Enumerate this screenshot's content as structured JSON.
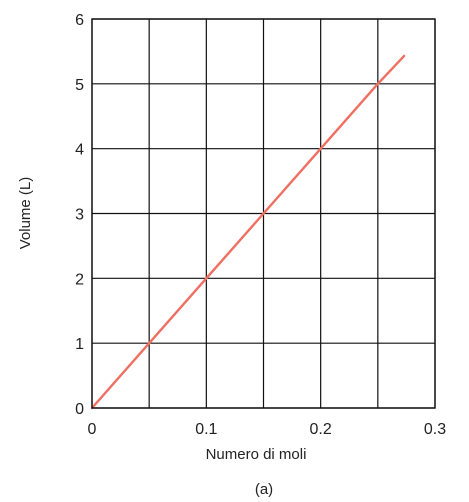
{
  "chart_data": {
    "type": "line",
    "xlabel": "Numero di moli",
    "ylabel": "Volume (L)",
    "panel_label": "(a)",
    "xlim": [
      0,
      0.3
    ],
    "ylim": [
      0,
      6
    ],
    "x_ticks": [
      "0",
      "0.1",
      "0.2",
      "0.3"
    ],
    "y_ticks": [
      "0",
      "1",
      "2",
      "3",
      "4",
      "5",
      "6"
    ],
    "grid": true,
    "series": [
      {
        "color": "#ef6f62",
        "x": [
          0,
          0.05,
          0.1,
          0.15,
          0.2,
          0.25,
          0.273
        ],
        "y": [
          0,
          1,
          2,
          3,
          4,
          5,
          5.43
        ]
      }
    ]
  }
}
